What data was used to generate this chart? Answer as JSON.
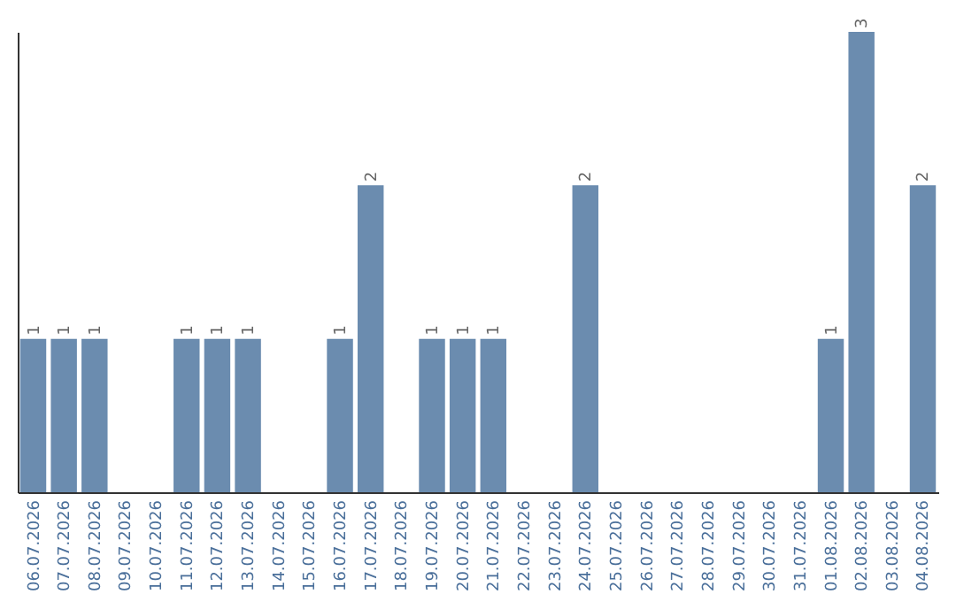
{
  "chart_data": {
    "type": "bar",
    "categories": [
      "06.07.2026",
      "07.07.2026",
      "08.07.2026",
      "09.07.2026",
      "10.07.2026",
      "11.07.2026",
      "12.07.2026",
      "13.07.2026",
      "14.07.2026",
      "15.07.2026",
      "16.07.2026",
      "17.07.2026",
      "18.07.2026",
      "19.07.2026",
      "20.07.2026",
      "21.07.2026",
      "22.07.2026",
      "23.07.2026",
      "24.07.2026",
      "25.07.2026",
      "26.07.2026",
      "27.07.2026",
      "28.07.2026",
      "29.07.2026",
      "30.07.2026",
      "31.07.2026",
      "01.08.2026",
      "02.08.2026",
      "03.08.2026",
      "04.08.2026"
    ],
    "values": [
      1,
      1,
      1,
      0,
      0,
      1,
      1,
      1,
      0,
      0,
      1,
      2,
      0,
      1,
      1,
      1,
      0,
      0,
      2,
      0,
      0,
      0,
      0,
      0,
      0,
      0,
      1,
      3,
      0,
      2
    ],
    "value_labels": [
      "1",
      "1",
      "1",
      null,
      null,
      "1",
      "1",
      "1",
      null,
      null,
      "1",
      "2",
      null,
      "1",
      "1",
      "1",
      null,
      null,
      "2",
      null,
      null,
      null,
      null,
      null,
      null,
      null,
      "1",
      "3",
      null,
      "2"
    ],
    "color": "#6b8caf",
    "tick_labels": "x"
  }
}
